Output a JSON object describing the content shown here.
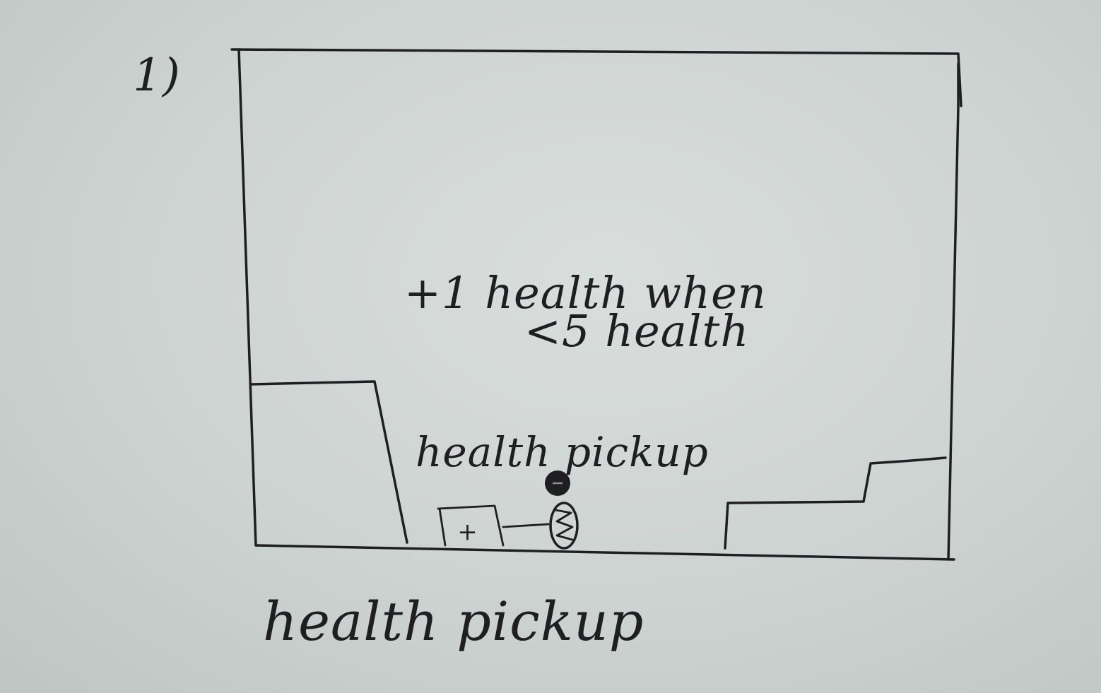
{
  "sketch": {
    "panel_number": "1)",
    "effect_note_line1": "+1 health when",
    "effect_note_line2": "<5 health",
    "pickup_label": "health pickup",
    "caption": "health pickup",
    "crate_symbol": "+",
    "elements": {
      "health_crate": "health-crate-icon",
      "player": "player-character-icon",
      "pickup_orb": "health-orb-icon"
    }
  }
}
